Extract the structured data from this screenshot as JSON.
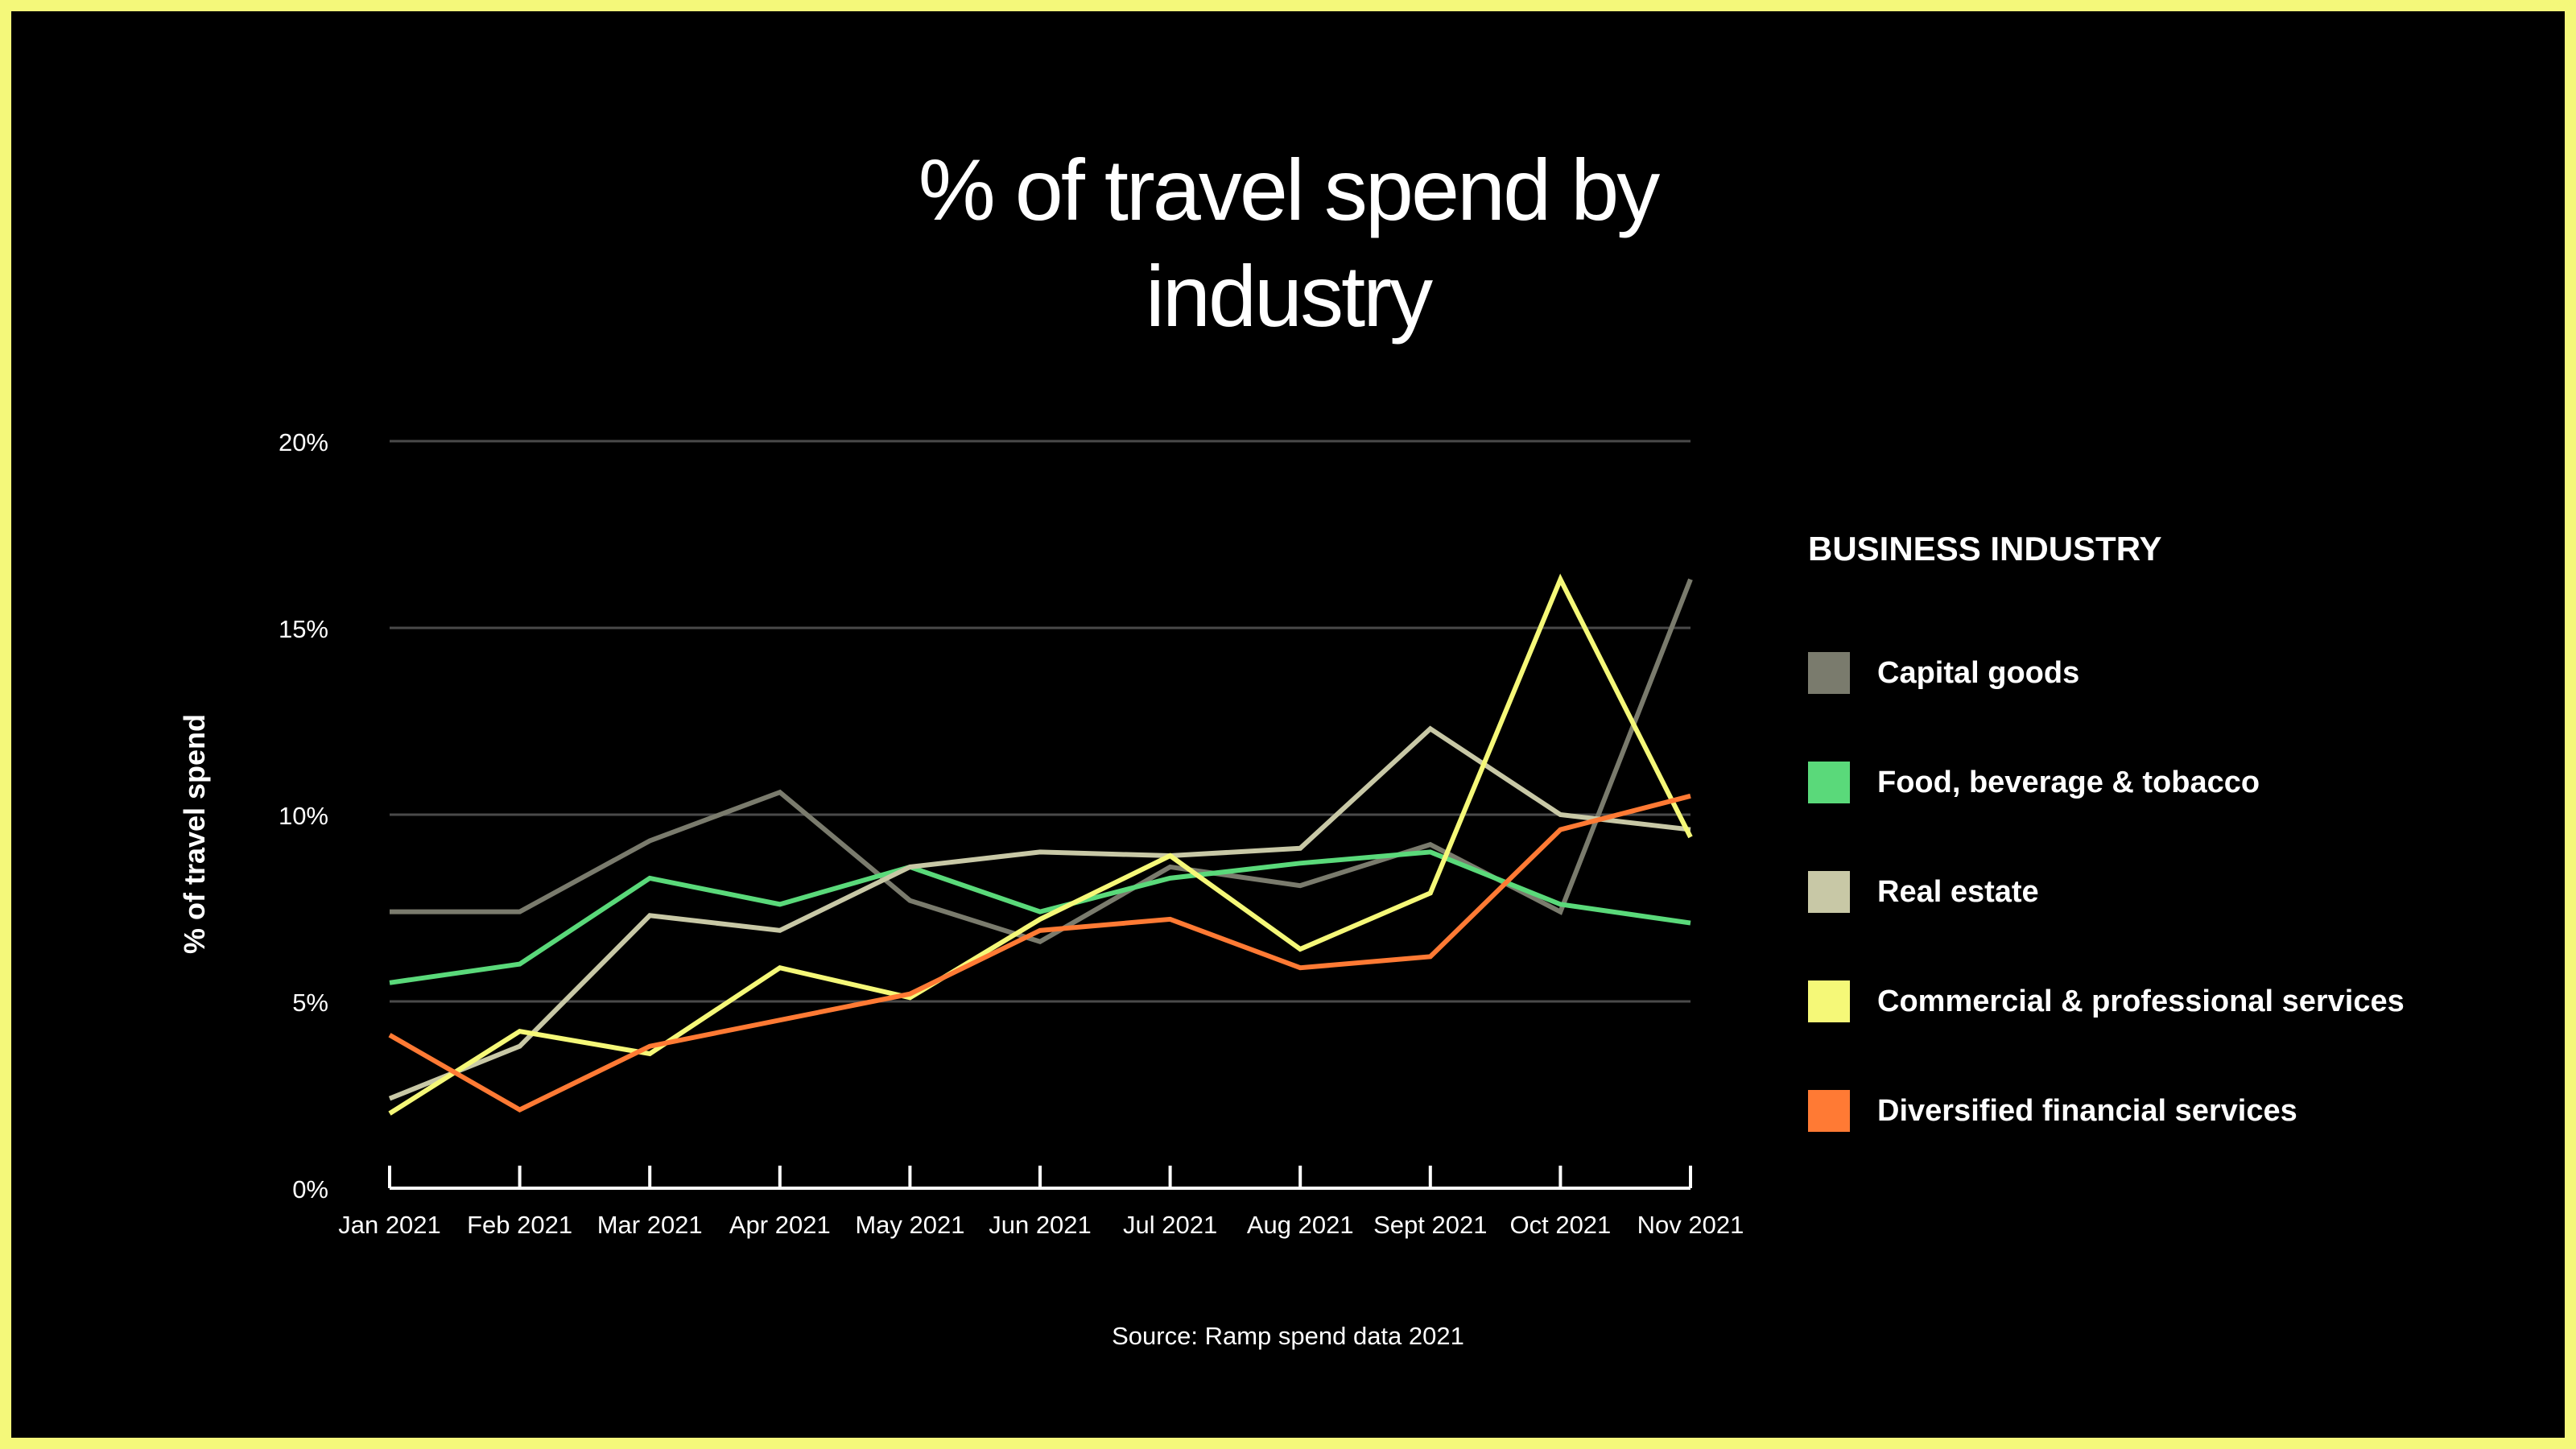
{
  "chart_data": {
    "type": "line",
    "title": "% of travel spend by industry",
    "ylabel": "% of travel spend",
    "xlabel": "",
    "ylim": [
      0,
      20
    ],
    "yticks": [
      0,
      5,
      10,
      15,
      20
    ],
    "ytick_labels": [
      "0%",
      "5%",
      "10%",
      "15%",
      "20%"
    ],
    "grid": true,
    "categories": [
      "Jan 2021",
      "Feb 2021",
      "Mar 2021",
      "Apr 2021",
      "May 2021",
      "Jun 2021",
      "Jul 2021",
      "Aug 2021",
      "Sept 2021",
      "Oct 2021",
      "Nov 2021"
    ],
    "legend_title": "BUSINESS INDUSTRY",
    "legend_position": "right",
    "series": [
      {
        "name": "Capital goods",
        "color": "#7a7b6d",
        "values": [
          7.4,
          7.4,
          9.3,
          10.6,
          7.7,
          6.6,
          8.6,
          8.1,
          9.2,
          7.4,
          16.3
        ]
      },
      {
        "name": "Food, beverage & tobacco",
        "color": "#5ad97a",
        "values": [
          5.5,
          6.0,
          8.3,
          7.6,
          8.6,
          7.4,
          8.3,
          8.7,
          9.0,
          7.6,
          7.1
        ]
      },
      {
        "name": "Real estate",
        "color": "#c8c8a6",
        "values": [
          2.4,
          3.8,
          7.3,
          6.9,
          8.6,
          9.0,
          8.9,
          9.1,
          12.3,
          10.0,
          9.6
        ]
      },
      {
        "name": "Commercial & professional services",
        "color": "#f5f878",
        "values": [
          2.0,
          4.2,
          3.6,
          5.9,
          5.1,
          7.2,
          8.9,
          6.4,
          7.9,
          16.3,
          9.4
        ]
      },
      {
        "name": "Diversified financial services",
        "color": "#ff7a34",
        "values": [
          4.1,
          2.1,
          3.8,
          4.5,
          5.2,
          6.9,
          7.2,
          5.9,
          6.2,
          9.6,
          10.5
        ]
      }
    ],
    "source": "Source: Ramp spend data 2021"
  }
}
